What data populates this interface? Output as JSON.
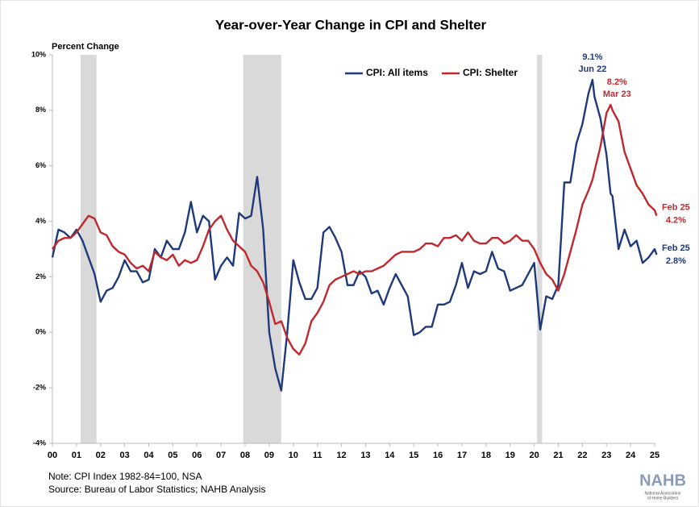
{
  "chart_data": {
    "type": "line",
    "title": "Year-over-Year Change in CPI and Shelter",
    "y_label": "Percent Change",
    "x": [
      2000,
      2000.25,
      2000.5,
      2000.75,
      2001,
      2001.25,
      2001.5,
      2001.75,
      2002,
      2002.25,
      2002.5,
      2002.75,
      2003,
      2003.25,
      2003.5,
      2003.75,
      2004,
      2004.25,
      2004.5,
      2004.75,
      2005,
      2005.25,
      2005.5,
      2005.75,
      2006,
      2006.25,
      2006.5,
      2006.75,
      2007,
      2007.25,
      2007.5,
      2007.75,
      2008,
      2008.25,
      2008.5,
      2008.75,
      2009,
      2009.25,
      2009.5,
      2009.75,
      2010,
      2010.25,
      2010.5,
      2010.75,
      2011,
      2011.25,
      2011.5,
      2011.75,
      2012,
      2012.25,
      2012.5,
      2012.75,
      2013,
      2013.25,
      2013.5,
      2013.75,
      2014,
      2014.25,
      2014.5,
      2014.75,
      2015,
      2015.25,
      2015.5,
      2015.75,
      2016,
      2016.25,
      2016.5,
      2016.75,
      2017,
      2017.25,
      2017.5,
      2017.75,
      2018,
      2018.25,
      2018.5,
      2018.75,
      2019,
      2019.25,
      2019.5,
      2019.75,
      2020,
      2020.25,
      2020.5,
      2020.75,
      2021,
      2021.25,
      2021.5,
      2021.75,
      2022,
      2022.25,
      2022.42,
      2022.5,
      2022.75,
      2023,
      2023.17,
      2023.25,
      2023.5,
      2023.75,
      2024,
      2024.25,
      2024.5,
      2024.75,
      2025,
      2025.08
    ],
    "series": [
      {
        "name": "CPI: All items",
        "color": "#1f3a7a",
        "values": [
          2.7,
          3.7,
          3.6,
          3.4,
          3.7,
          3.3,
          2.7,
          2.1,
          1.1,
          1.5,
          1.6,
          2.0,
          2.6,
          2.2,
          2.2,
          1.8,
          1.9,
          3.0,
          2.7,
          3.3,
          3.0,
          3.0,
          3.6,
          4.7,
          3.6,
          4.2,
          4.0,
          1.9,
          2.4,
          2.7,
          2.4,
          4.3,
          4.1,
          4.2,
          5.6,
          3.7,
          0.0,
          -1.3,
          -2.1,
          0.0,
          2.6,
          1.8,
          1.2,
          1.2,
          1.6,
          3.6,
          3.8,
          3.4,
          2.9,
          1.7,
          1.7,
          2.2,
          2.0,
          1.4,
          1.5,
          1.0,
          1.6,
          2.1,
          1.7,
          1.3,
          -0.1,
          0.0,
          0.2,
          0.2,
          1.0,
          1.0,
          1.1,
          1.7,
          2.5,
          1.6,
          2.2,
          2.1,
          2.2,
          2.9,
          2.3,
          2.2,
          1.5,
          1.6,
          1.7,
          2.1,
          2.5,
          0.1,
          1.3,
          1.2,
          1.7,
          5.4,
          5.4,
          6.8,
          7.5,
          8.6,
          9.1,
          8.5,
          7.7,
          6.4,
          5.0,
          4.9,
          3.0,
          3.7,
          3.1,
          3.3,
          2.5,
          2.7,
          3.0,
          2.8
        ]
      },
      {
        "name": "CPI: Shelter",
        "color": "#c0282d",
        "values": [
          3.0,
          3.3,
          3.4,
          3.4,
          3.6,
          3.9,
          4.2,
          4.1,
          3.6,
          3.5,
          3.1,
          2.9,
          2.8,
          2.5,
          2.3,
          2.4,
          2.2,
          2.9,
          2.7,
          2.6,
          2.8,
          2.4,
          2.6,
          2.5,
          2.6,
          3.1,
          3.7,
          4.0,
          4.2,
          3.7,
          3.3,
          3.1,
          2.9,
          2.4,
          2.2,
          1.8,
          1.1,
          0.3,
          0.4,
          -0.2,
          -0.6,
          -0.8,
          -0.4,
          0.4,
          0.7,
          1.1,
          1.7,
          1.9,
          2.0,
          2.1,
          2.2,
          2.1,
          2.2,
          2.2,
          2.3,
          2.4,
          2.6,
          2.8,
          2.9,
          2.9,
          2.9,
          3.0,
          3.2,
          3.2,
          3.1,
          3.4,
          3.4,
          3.5,
          3.3,
          3.6,
          3.3,
          3.2,
          3.2,
          3.4,
          3.4,
          3.2,
          3.3,
          3.5,
          3.3,
          3.3,
          3.0,
          2.5,
          2.1,
          1.9,
          1.5,
          2.1,
          2.9,
          3.7,
          4.6,
          5.1,
          5.5,
          5.8,
          6.7,
          7.9,
          8.2,
          8.0,
          7.6,
          6.5,
          5.9,
          5.3,
          5.0,
          4.6,
          4.4,
          4.2
        ]
      }
    ],
    "recessions": [
      [
        2001.17,
        2001.83
      ],
      [
        2007.92,
        2009.5
      ],
      [
        2020.12,
        2020.33
      ]
    ],
    "recession_color": "#d9d9d9",
    "annotations": [
      {
        "series": 0,
        "x": 2022.42,
        "value": 9.1,
        "label": "9.1%",
        "date": "Jun 22"
      },
      {
        "series": 1,
        "x": 2023.17,
        "value": 8.2,
        "label": "8.2%",
        "date": "Mar 23"
      },
      {
        "series": 1,
        "x": 2025.08,
        "value": 4.2,
        "label": "4.2%",
        "date": "Feb 25"
      },
      {
        "series": 0,
        "x": 2025.08,
        "value": 2.8,
        "label": "2.8%",
        "date": "Feb 25"
      }
    ],
    "xlim": [
      2000,
      2025
    ],
    "xticks": [
      {
        "value": 2000,
        "label": "00"
      },
      {
        "value": 2001,
        "label": "01"
      },
      {
        "value": 2002,
        "label": "02"
      },
      {
        "value": 2003,
        "label": "03"
      },
      {
        "value": 2004,
        "label": "04"
      },
      {
        "value": 2005,
        "label": "05"
      },
      {
        "value": 2006,
        "label": "06"
      },
      {
        "value": 2007,
        "label": "07"
      },
      {
        "value": 2008,
        "label": "08"
      },
      {
        "value": 2009,
        "label": "09"
      },
      {
        "value": 2010,
        "label": "10"
      },
      {
        "value": 2011,
        "label": "11"
      },
      {
        "value": 2012,
        "label": "12"
      },
      {
        "value": 2013,
        "label": "13"
      },
      {
        "value": 2014,
        "label": "14"
      },
      {
        "value": 2015,
        "label": "15"
      },
      {
        "value": 2016,
        "label": "16"
      },
      {
        "value": 2017,
        "label": "17"
      },
      {
        "value": 2018,
        "label": "18"
      },
      {
        "value": 2019,
        "label": "19"
      },
      {
        "value": 2020,
        "label": "20"
      },
      {
        "value": 2021,
        "label": "21"
      },
      {
        "value": 2022,
        "label": "22"
      },
      {
        "value": 2023,
        "label": "23"
      },
      {
        "value": 2024,
        "label": "24"
      },
      {
        "value": 2025,
        "label": "25"
      }
    ],
    "ylim": [
      -4,
      10
    ],
    "yticks": [
      {
        "value": -4,
        "label": "-4%"
      },
      {
        "value": -2,
        "label": "-2%"
      },
      {
        "value": 0,
        "label": "0%"
      },
      {
        "value": 2,
        "label": "2%"
      },
      {
        "value": 4,
        "label": "4%"
      },
      {
        "value": 6,
        "label": "6%"
      },
      {
        "value": 8,
        "label": "8%"
      },
      {
        "value": 10,
        "label": "10%"
      }
    ],
    "grid": false,
    "legend": "top",
    "notes": [
      "Note: CPI Index 1982-84=100, NSA",
      "Source: Bureau of Labor Statistics; NAHB Analysis"
    ],
    "logo": {
      "name": "NAHB",
      "subtitle": [
        "National Association",
        "of Home Builders"
      ]
    }
  }
}
